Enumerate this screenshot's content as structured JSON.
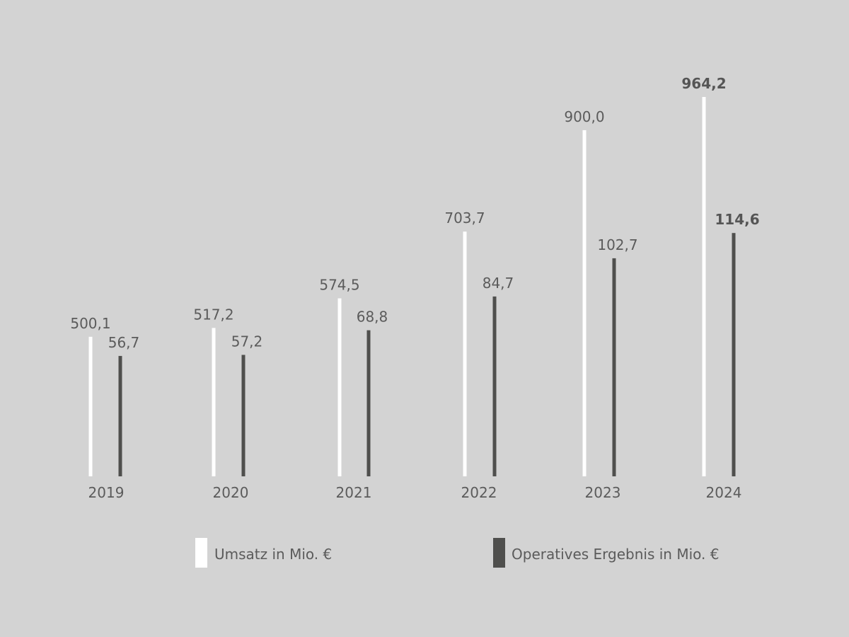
{
  "chart_data": {
    "type": "bar",
    "categories": [
      "2019",
      "2020",
      "2021",
      "2022",
      "2023",
      "2024"
    ],
    "series": [
      {
        "name": "Umsatz in Mio. €",
        "values": [
          500.1,
          517.2,
          574.5,
          703.7,
          900.0,
          964.2
        ],
        "value_labels": [
          "500,1",
          "517,2",
          "574,5",
          "703,7",
          "900,0",
          "964,2"
        ],
        "color": "#ffffff"
      },
      {
        "name": "Operatives Ergebnis in Mio. €",
        "values": [
          56.7,
          57.2,
          68.8,
          84.7,
          102.7,
          114.6
        ],
        "value_labels": [
          "56,7",
          "57,2",
          "68,8",
          "84,7",
          "102,7",
          "114,6"
        ],
        "color": "#4f4f4d"
      }
    ],
    "bold_category": "2024",
    "legend_position": "bottom",
    "grid": false,
    "scales": "independent"
  },
  "colors": {
    "background": "#d3d3d3",
    "text": "#5b5b5b"
  }
}
